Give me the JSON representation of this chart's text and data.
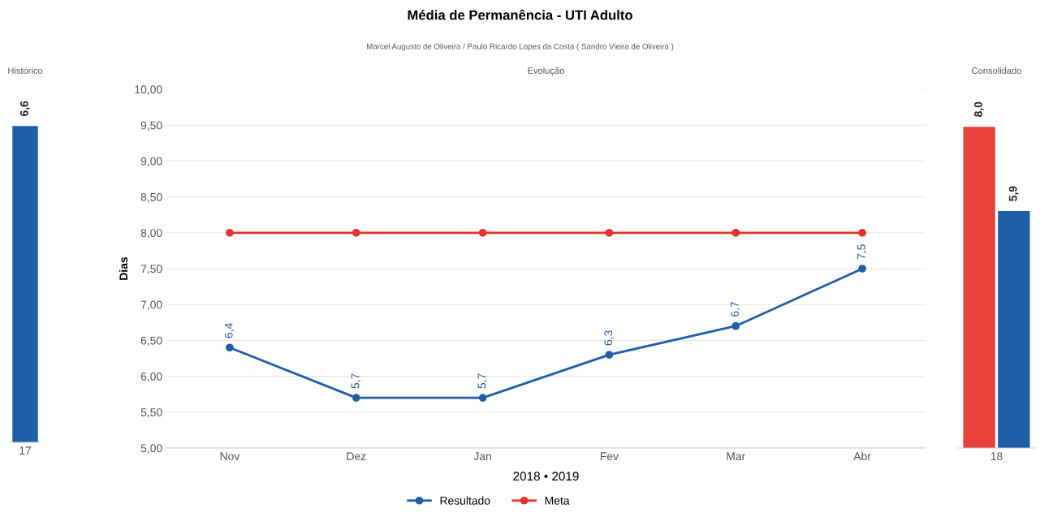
{
  "chart_data": [
    {
      "type": "bar",
      "title": "Histórico",
      "categories": [
        "17"
      ],
      "series": [
        {
          "color": "#1f5fa8",
          "values": [
            6.6
          ],
          "value_labels": [
            "6,6"
          ]
        }
      ]
    },
    {
      "type": "line",
      "title": "Média de Permanência - UTI Adulto",
      "subtitle": "Marcel Augusto de Oliveira / Paulo Ricardo Lopes da Costa ( Sandro Vieira de Oliveira )",
      "annotations": [
        "Evolução"
      ],
      "xlabel": "2018 • 2019",
      "ylabel": "Dias",
      "categories": [
        "Nov",
        "Dez",
        "Jan",
        "Fev",
        "Mar",
        "Abr"
      ],
      "ylim": [
        5,
        10
      ],
      "yticks": [
        {
          "value": 5,
          "label": "5,00"
        },
        {
          "value": 5.5,
          "label": "5,50"
        },
        {
          "value": 6,
          "label": "6,00"
        },
        {
          "value": 6.5,
          "label": "6,50"
        },
        {
          "value": 7,
          "label": "7,00"
        },
        {
          "value": 7.5,
          "label": "7,50"
        },
        {
          "value": 8,
          "label": "8,00"
        },
        {
          "value": 8.5,
          "label": "8,50"
        },
        {
          "value": 9,
          "label": "9,00"
        },
        {
          "value": 9.5,
          "label": "9,50"
        },
        {
          "value": 10,
          "label": "10,00"
        }
      ],
      "grid": "y",
      "legend": "bottom",
      "marker": "circle",
      "series": [
        {
          "name": "Resultado",
          "color": "#1f5fa8",
          "values": [
            6.4,
            5.7,
            5.7,
            6.3,
            6.7,
            7.5
          ],
          "value_labels": [
            "6,4",
            "5,7",
            "5,7",
            "6,3",
            "6,7",
            "7,5"
          ]
        },
        {
          "name": "Meta",
          "color": "#e8312a",
          "values": [
            8.0,
            8.0,
            8.0,
            8.0,
            8.0,
            8.0
          ]
        }
      ]
    },
    {
      "type": "bar",
      "title": "Consolidado",
      "categories": [
        "18"
      ],
      "series": [
        {
          "color": "#e8413a",
          "values": [
            8.0
          ],
          "value_labels": [
            "8,0"
          ]
        },
        {
          "color": "#1f5fa8",
          "values": [
            5.9
          ],
          "value_labels": [
            "5,9"
          ]
        }
      ]
    }
  ]
}
